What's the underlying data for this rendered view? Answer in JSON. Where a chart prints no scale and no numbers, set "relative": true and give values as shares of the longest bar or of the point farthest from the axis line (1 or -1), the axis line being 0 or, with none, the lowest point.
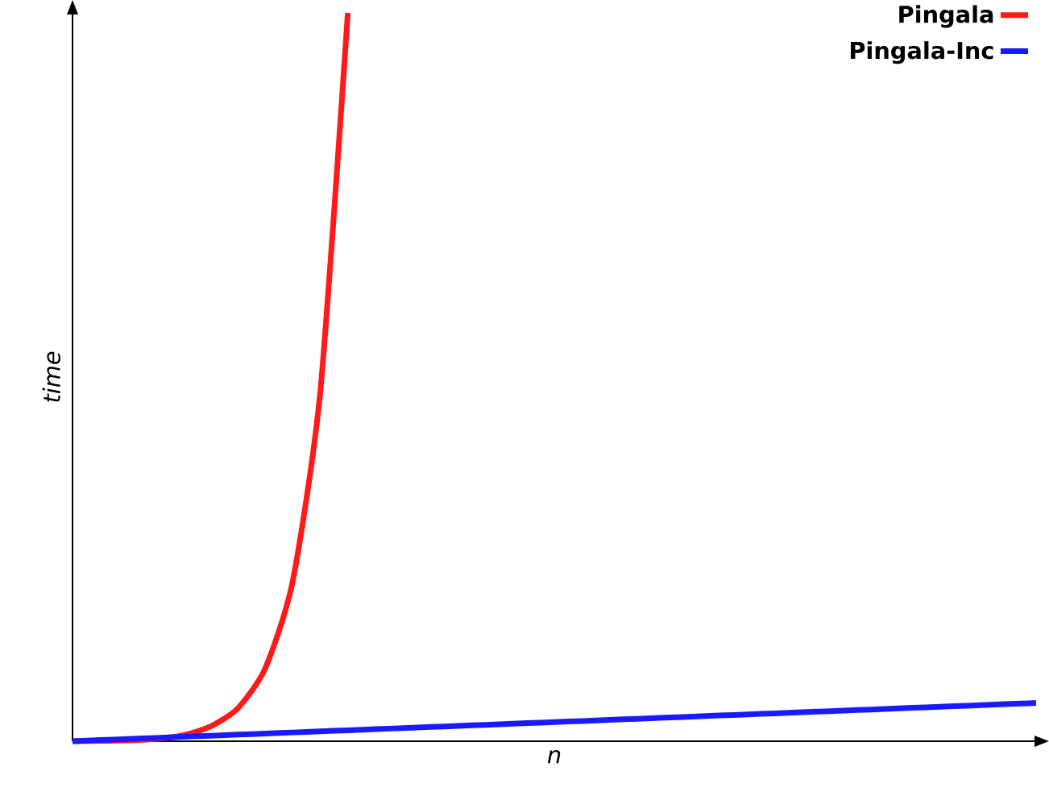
{
  "chart_data": {
    "type": "line",
    "xlabel": "n",
    "ylabel": "time",
    "relative": true,
    "legend": "top right",
    "categories": [
      null,
      null,
      null,
      null,
      null,
      null,
      null,
      null,
      null,
      null,
      null,
      null,
      null,
      null,
      null,
      null,
      null,
      null,
      null,
      null,
      null,
      null,
      null,
      null,
      null,
      null,
      null,
      null,
      null,
      null,
      null,
      null,
      null,
      null,
      null,
      null
    ],
    "series": [
      {
        "name": "Pingala",
        "color": "#ff1a1a",
        "values": [
          0,
          0.0005,
          0.001,
          0.003,
          0.008,
          0.02,
          0.045,
          0.1,
          0.22,
          0.48,
          1,
          null,
          null,
          null,
          null,
          null,
          null,
          null,
          null,
          null,
          null,
          null,
          null,
          null,
          null,
          null,
          null,
          null,
          null,
          null,
          null,
          null,
          null,
          null,
          null,
          null
        ]
      },
      {
        "name": "Pingala-Inc",
        "color": "#1a1aff",
        "values": [
          0,
          0.0015,
          0.003,
          0.0045,
          0.006,
          0.0075,
          0.009,
          0.0105,
          0.012,
          0.0135,
          0.015,
          0.0165,
          0.018,
          0.0195,
          0.021,
          0.0225,
          0.024,
          0.0255,
          0.027,
          0.0285,
          0.03,
          0.0315,
          0.033,
          0.0345,
          0.036,
          0.0375,
          0.039,
          0.0405,
          0.042,
          0.0435,
          0.045,
          0.0465,
          0.048,
          0.0495,
          0.051,
          0.0525
        ]
      }
    ]
  }
}
